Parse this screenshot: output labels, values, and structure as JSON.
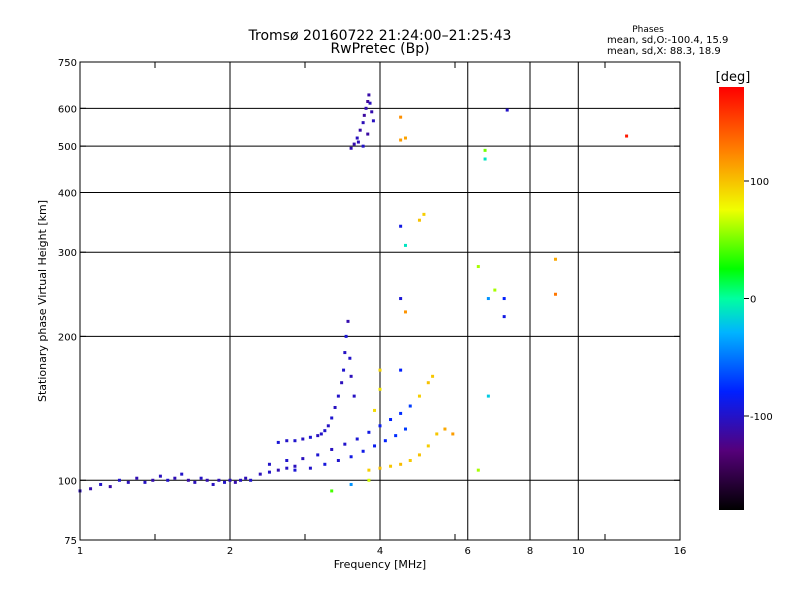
{
  "chart_data": {
    "type": "scatter",
    "title_line1": "Tromsø 20160722 21:24:00–21:25:43",
    "title_line2": "RwPretec (Bp)",
    "legend_title": "Phases",
    "legend_line1": "mean, sd,O:-100.4, 15.9",
    "legend_line2": "mean, sd,X:  88.3, 18.9",
    "xlabel": "Frequency [MHz]",
    "ylabel": "Stationary phase Virtual Height [km]",
    "xscale": "log2",
    "yscale": "log",
    "xlim": [
      1,
      16
    ],
    "ylim": [
      75,
      750
    ],
    "xticks": [
      1,
      2,
      4,
      6,
      8,
      10,
      16
    ],
    "xtick_labels": [
      "1",
      "2",
      "4",
      "6",
      "8",
      "10",
      "16"
    ],
    "xgrid": [
      2,
      4,
      6,
      8,
      10
    ],
    "yticks": [
      75,
      100,
      200,
      300,
      400,
      500,
      600,
      750
    ],
    "ytick_labels": [
      "75",
      "100",
      "200",
      "300",
      "400",
      "500",
      "600",
      "750"
    ],
    "ygrid": [
      100,
      200,
      300,
      400,
      500,
      600
    ],
    "colorbar": {
      "label": "[deg]",
      "range": [
        -180,
        180
      ],
      "ticks": [
        100,
        0,
        -100
      ],
      "tick_labels": [
        "100",
        "0",
        "-100"
      ]
    },
    "series": [
      {
        "values": [
          [
            1.0,
            95,
            -105
          ],
          [
            1.05,
            96,
            -110
          ],
          [
            1.1,
            98,
            -100
          ],
          [
            1.15,
            97,
            -112
          ],
          [
            1.2,
            100,
            -98
          ],
          [
            1.25,
            99,
            -105
          ],
          [
            1.3,
            101,
            -108
          ],
          [
            1.35,
            99,
            -102
          ],
          [
            1.4,
            100,
            -110
          ],
          [
            1.45,
            102,
            -104
          ],
          [
            1.5,
            100,
            -99
          ],
          [
            1.55,
            101,
            -107
          ],
          [
            1.6,
            103,
            -100
          ],
          [
            1.65,
            100,
            -112
          ],
          [
            1.7,
            99,
            -105
          ],
          [
            1.75,
            101,
            -101
          ],
          [
            1.8,
            100,
            -108
          ],
          [
            1.85,
            98,
            -103
          ],
          [
            1.9,
            100,
            -106
          ],
          [
            1.95,
            99,
            -100
          ],
          [
            2.0,
            100,
            -104
          ],
          [
            2.05,
            99,
            -110
          ],
          [
            2.1,
            100,
            -102
          ],
          [
            2.15,
            101,
            -106
          ],
          [
            2.2,
            100,
            -98
          ],
          [
            2.3,
            103,
            -105
          ],
          [
            2.4,
            104,
            -100
          ],
          [
            2.5,
            105,
            -108
          ],
          [
            2.6,
            106,
            -102
          ],
          [
            2.7,
            107,
            -104
          ]
        ]
      },
      {
        "values": [
          [
            2.5,
            120,
            -95
          ],
          [
            2.6,
            121,
            -100
          ],
          [
            2.7,
            121,
            -98
          ],
          [
            2.8,
            122,
            -102
          ],
          [
            2.9,
            123,
            -96
          ],
          [
            3.0,
            124,
            -104
          ],
          [
            3.05,
            125,
            -100
          ],
          [
            3.1,
            127,
            -98
          ],
          [
            3.15,
            130,
            -102
          ],
          [
            3.2,
            135,
            -97
          ],
          [
            3.25,
            142,
            -103
          ],
          [
            3.3,
            150,
            -100
          ],
          [
            3.35,
            160,
            -105
          ],
          [
            3.38,
            170,
            -98
          ],
          [
            3.4,
            185,
            -102
          ],
          [
            3.42,
            200,
            -95
          ],
          [
            3.45,
            215,
            -110
          ],
          [
            3.48,
            180,
            -100
          ],
          [
            3.5,
            165,
            -105
          ],
          [
            3.55,
            150,
            -102
          ]
        ]
      },
      {
        "values": [
          [
            2.4,
            108,
            -100
          ],
          [
            2.6,
            110,
            -98
          ],
          [
            2.8,
            111,
            -104
          ],
          [
            3.0,
            113,
            -97
          ],
          [
            3.2,
            116,
            -103
          ],
          [
            3.4,
            119,
            -99
          ],
          [
            3.6,
            122,
            -95
          ],
          [
            3.8,
            126,
            -90
          ],
          [
            4.0,
            130,
            -85
          ],
          [
            4.2,
            134,
            -80
          ],
          [
            4.4,
            138,
            -75
          ],
          [
            4.6,
            143,
            -70
          ]
        ]
      },
      {
        "values": [
          [
            2.7,
            105,
            -95
          ],
          [
            2.9,
            106,
            -100
          ],
          [
            3.1,
            108,
            -93
          ],
          [
            3.3,
            110,
            -98
          ],
          [
            3.5,
            112,
            -90
          ],
          [
            3.7,
            115,
            -88
          ],
          [
            3.9,
            118,
            -85
          ],
          [
            4.1,
            121,
            -80
          ],
          [
            4.3,
            124,
            -75
          ],
          [
            4.5,
            128,
            -70
          ]
        ]
      },
      {
        "values": [
          [
            3.5,
            495,
            -108
          ],
          [
            3.55,
            505,
            -110
          ],
          [
            3.6,
            520,
            -104
          ],
          [
            3.65,
            540,
            -112
          ],
          [
            3.7,
            560,
            -106
          ],
          [
            3.72,
            580,
            -115
          ],
          [
            3.75,
            600,
            -109
          ],
          [
            3.78,
            620,
            -118
          ],
          [
            3.8,
            640,
            -112
          ],
          [
            3.82,
            615,
            -105
          ],
          [
            3.85,
            590,
            -110
          ],
          [
            3.88,
            565,
            -103
          ],
          [
            3.7,
            500,
            -100
          ],
          [
            3.62,
            510,
            -107
          ],
          [
            3.78,
            530,
            -114
          ]
        ]
      },
      {
        "values": [
          [
            3.8,
            105,
            95
          ],
          [
            4.0,
            106,
            100
          ],
          [
            4.2,
            107,
            98
          ],
          [
            4.4,
            108,
            102
          ],
          [
            4.6,
            110,
            97
          ],
          [
            4.8,
            113,
            100
          ],
          [
            5.0,
            118,
            95
          ],
          [
            5.2,
            125,
            98
          ],
          [
            3.9,
            140,
            90
          ],
          [
            4.0,
            155,
            85
          ],
          [
            4.0,
            170,
            92
          ],
          [
            4.8,
            150,
            95
          ],
          [
            5.0,
            160,
            100
          ],
          [
            5.1,
            165,
            98
          ],
          [
            5.4,
            128,
            110
          ],
          [
            5.6,
            125,
            115
          ],
          [
            4.4,
            575,
            120
          ],
          [
            4.4,
            515,
            115
          ],
          [
            4.5,
            520,
            112
          ],
          [
            4.8,
            350,
            100
          ],
          [
            4.9,
            360,
            95
          ],
          [
            4.5,
            225,
            118
          ]
        ]
      },
      {
        "values": [
          [
            4.4,
            340,
            -90
          ],
          [
            4.5,
            310,
            -10
          ],
          [
            4.4,
            240,
            -95
          ],
          [
            4.4,
            170,
            -80
          ],
          [
            6.3,
            280,
            60
          ],
          [
            6.5,
            490,
            50
          ],
          [
            6.5,
            470,
            -10
          ],
          [
            6.8,
            250,
            60
          ],
          [
            6.6,
            240,
            -40
          ],
          [
            7.1,
            240,
            -80
          ],
          [
            7.1,
            220,
            -90
          ],
          [
            6.6,
            150,
            -20
          ],
          [
            6.3,
            105,
            60
          ],
          [
            7.2,
            595,
            -100
          ],
          [
            9.0,
            290,
            110
          ],
          [
            9.0,
            245,
            130
          ],
          [
            12.5,
            525,
            170
          ],
          [
            3.2,
            95,
            40
          ],
          [
            3.5,
            98,
            -40
          ],
          [
            3.8,
            100,
            70
          ]
        ]
      }
    ]
  }
}
